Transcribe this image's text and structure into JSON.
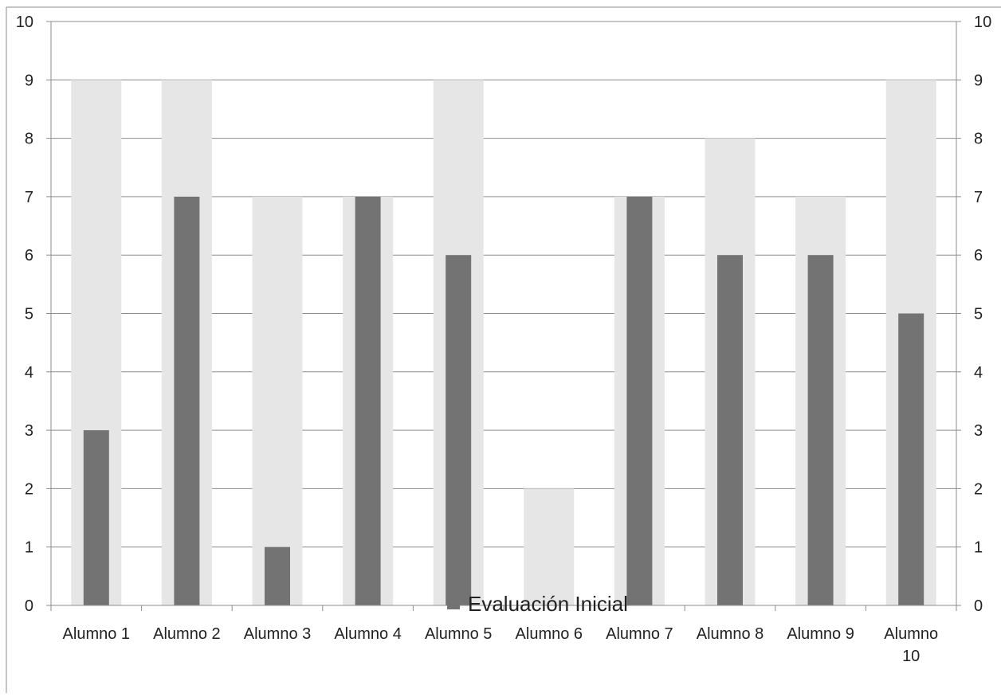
{
  "chart_data": {
    "type": "bar",
    "title": "",
    "xlabel": "",
    "ylabel": "",
    "ylim": [
      0,
      10
    ],
    "yticks": [
      "0",
      "1",
      "2",
      "3",
      "4",
      "5",
      "6",
      "7",
      "8",
      "9",
      "10"
    ],
    "y2ticks": [
      "0",
      "1",
      "2",
      "3",
      "4",
      "5",
      "6",
      "7",
      "8",
      "9",
      "10"
    ],
    "categories": [
      "Alumno 1",
      "Alumno 2",
      "Alumno 3",
      "Alumno 4",
      "Alumno 5",
      "Alumno 6",
      "Alumno 7",
      "Alumno 8",
      "Alumno 9",
      "Alumno 10"
    ],
    "series": [
      {
        "name": "",
        "axis": "secondary",
        "color": "#e6e6e6",
        "values": [
          9,
          9,
          7,
          7,
          9,
          2,
          7,
          8,
          7,
          9
        ]
      },
      {
        "name": "Evaluación Inicial",
        "axis": "primary",
        "color": "#737373",
        "values": [
          3,
          7,
          1,
          7,
          6,
          0,
          7,
          6,
          6,
          5
        ]
      }
    ],
    "grid": true,
    "legend": "bottom",
    "legend_entries": [
      "Evaluación Inicial"
    ]
  }
}
